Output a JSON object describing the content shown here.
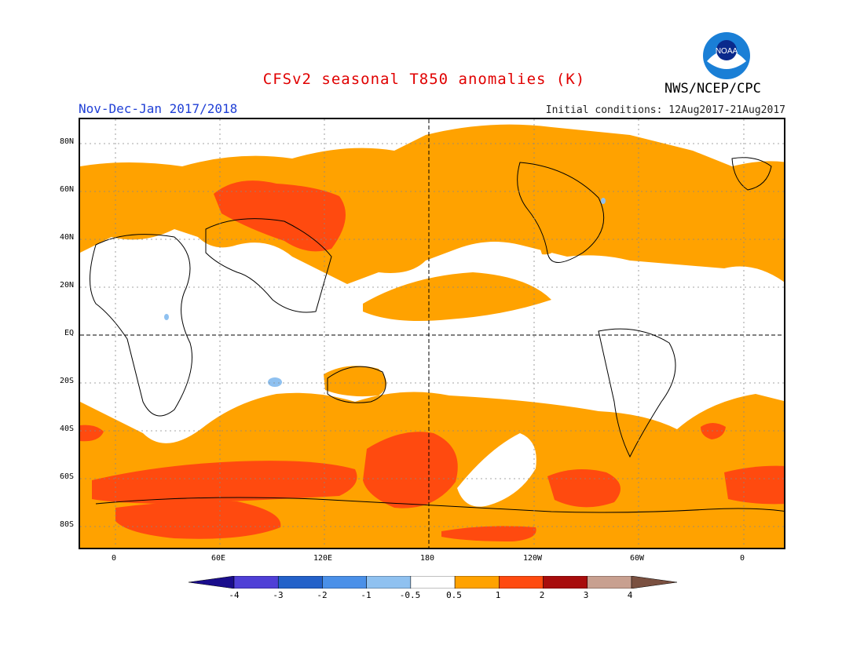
{
  "title": "CFSv2 seasonal T850 anomalies (K)",
  "agency": "NWS/NCEP/CPC",
  "period": "Nov-Dec-Jan 2017/2018",
  "initial_conditions": "Initial conditions: 12Aug2017-21Aug2017",
  "logo": {
    "icon": "noaa-logo",
    "text": "NOAA"
  },
  "lat_labels": [
    "80N",
    "60N",
    "40N",
    "20N",
    "EQ",
    "20S",
    "40S",
    "60S",
    "80S"
  ],
  "lon_labels": [
    "0",
    "60E",
    "120E",
    "180",
    "120W",
    "60W",
    "0"
  ],
  "colorbar": {
    "labels": [
      "-4",
      "-3",
      "-2",
      "-1",
      "-0.5",
      "0.5",
      "1",
      "2",
      "3",
      "4"
    ],
    "colors": [
      "#1a0d8c",
      "#4f3fd6",
      "#2361c9",
      "#4a90e8",
      "#8fc1f0",
      "#ffffff",
      "#ffa200",
      "#ff4a0f",
      "#a80d0d",
      "#c8a090",
      "#7a5040"
    ]
  },
  "colors": {
    "title": "#e00000",
    "period": "#1f3fd6",
    "anomaly_0_5_to_1": "#ffa200",
    "anomaly_1_to_2": "#ff4a0f",
    "anomaly_neg": "#8fc1f0"
  }
}
